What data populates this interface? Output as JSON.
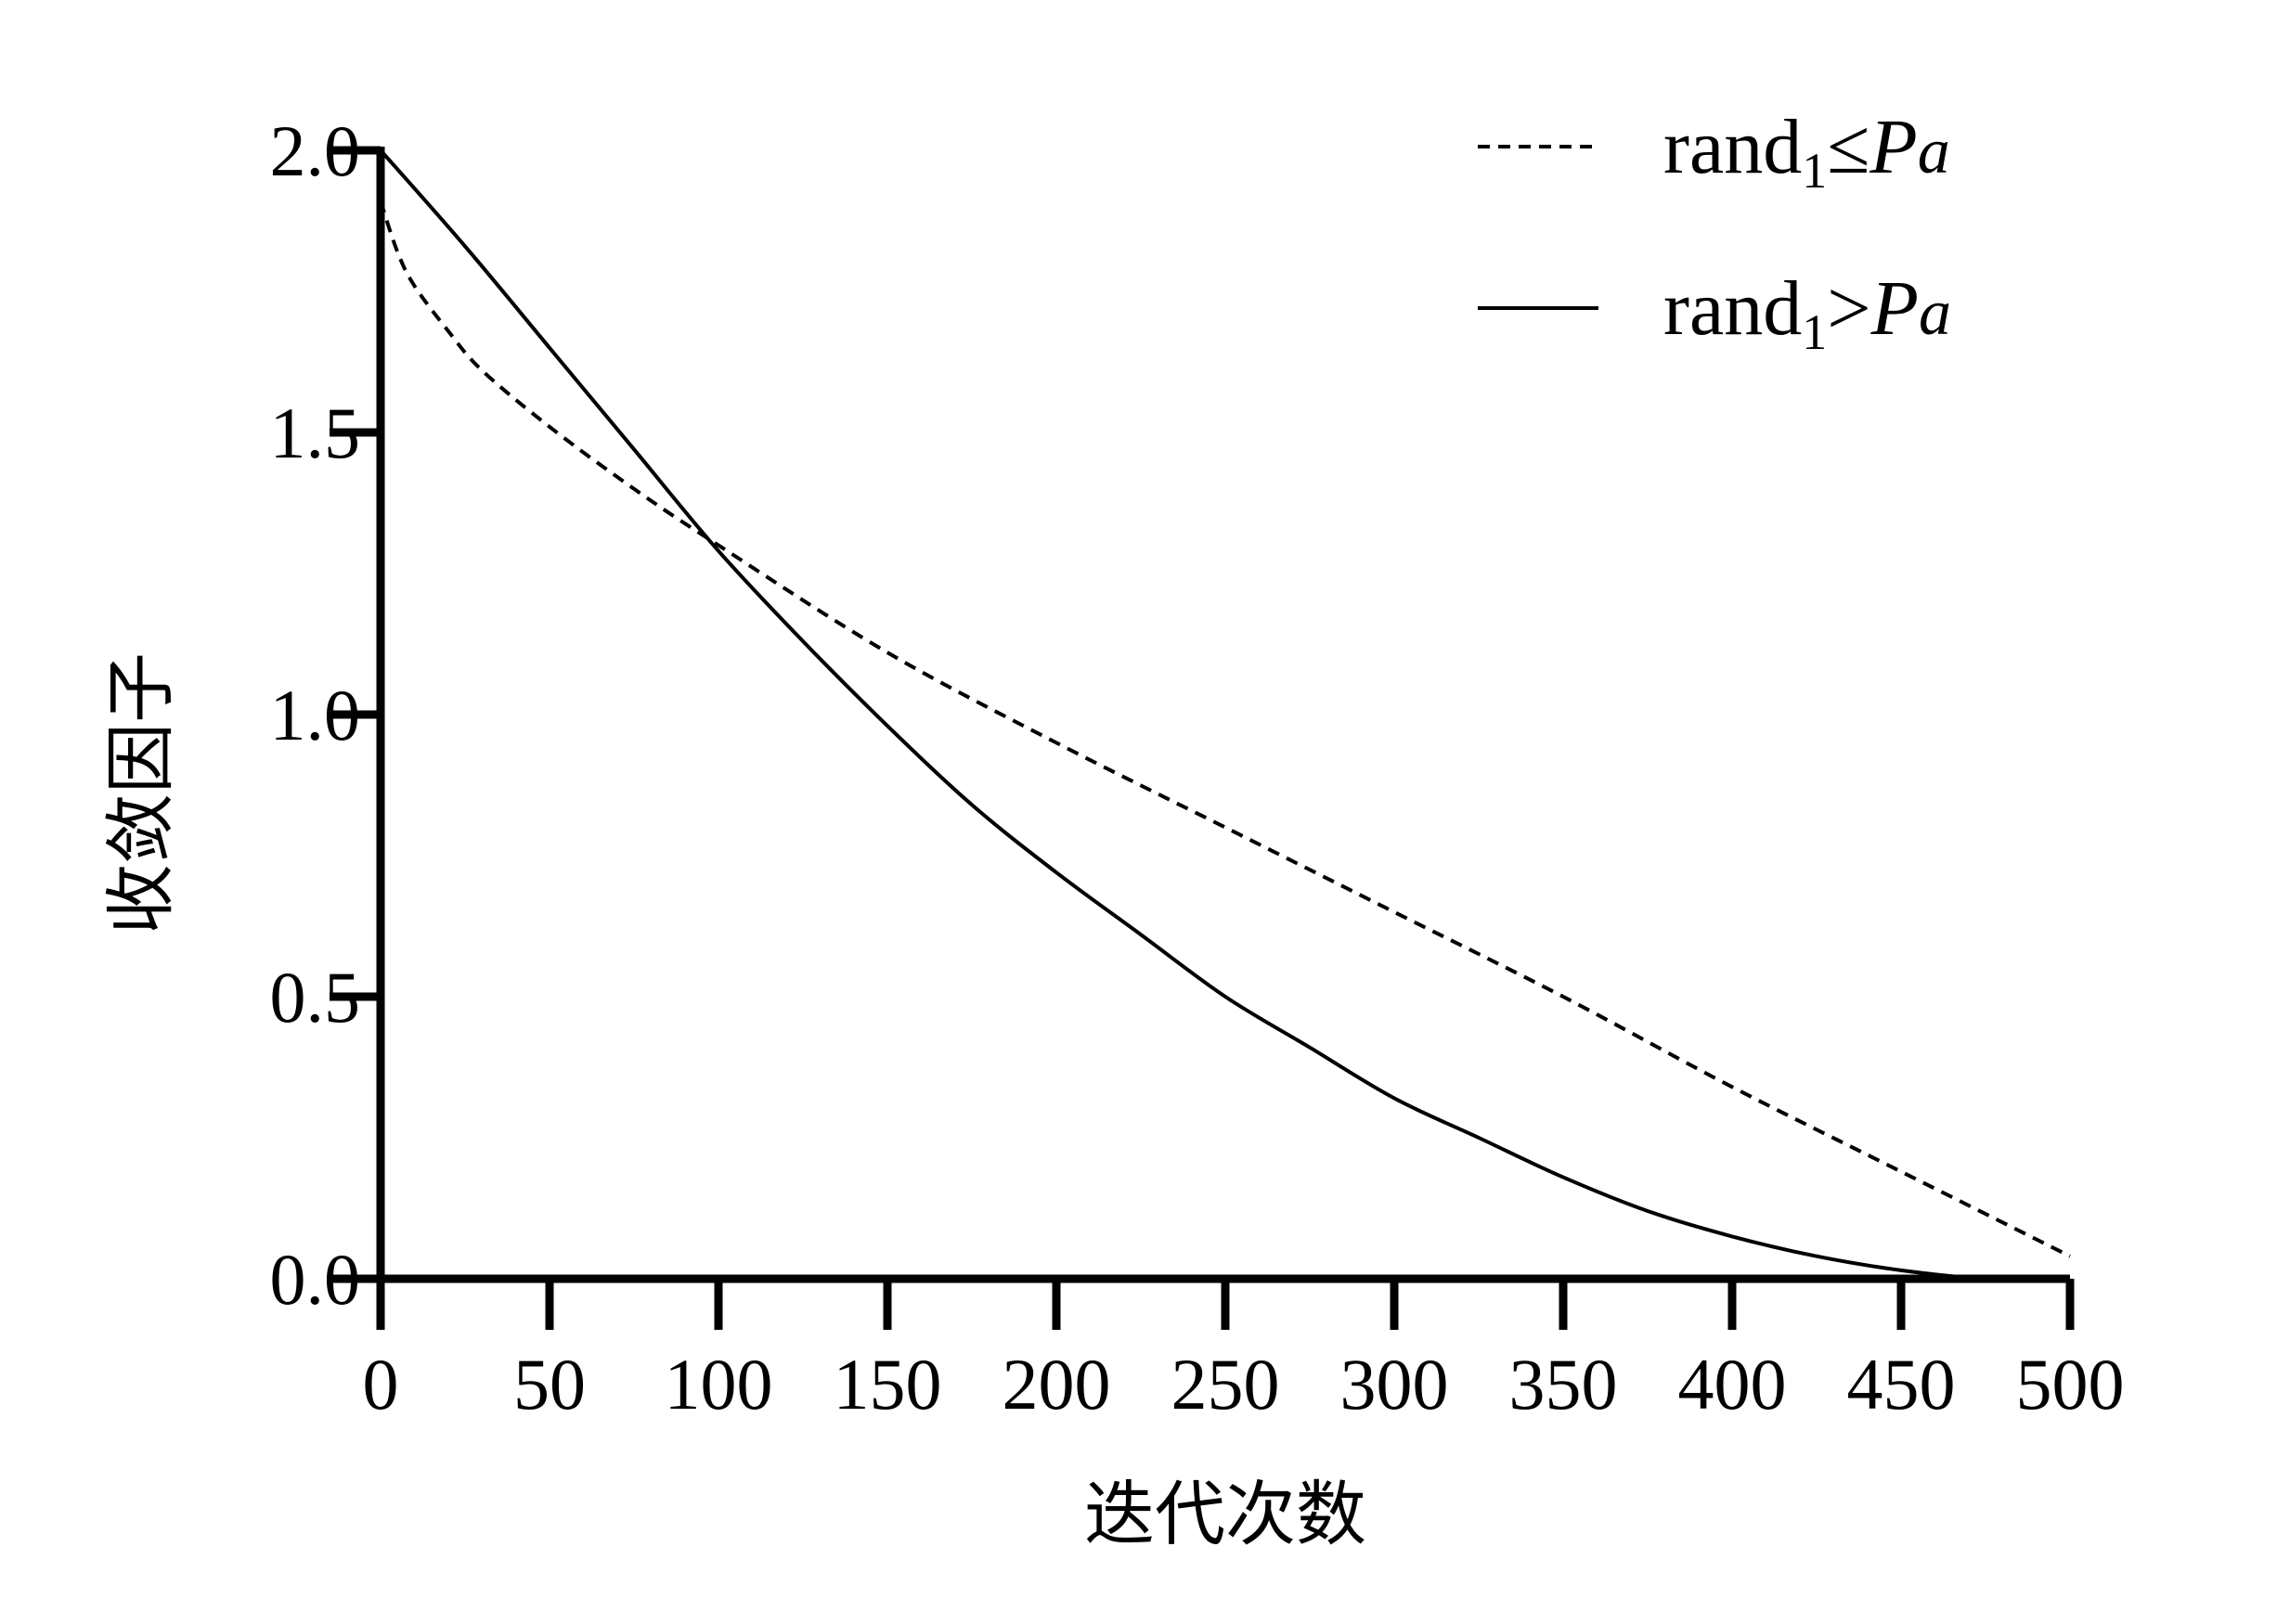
{
  "chart_data": {
    "type": "line",
    "xlabel": "迭代次数",
    "ylabel": "收敛因子",
    "xlim": [
      0,
      500
    ],
    "ylim": [
      0,
      2
    ],
    "x_ticks": [
      0,
      50,
      100,
      150,
      200,
      250,
      300,
      350,
      400,
      450,
      500
    ],
    "y_ticks": [
      "0.0",
      "0.5",
      "1.0",
      "1.5",
      "2.0"
    ],
    "grid": false,
    "legend_position": "top-right",
    "series": [
      {
        "name": "rand1≤Pa",
        "legend": {
          "base": "rand",
          "sub": "1",
          "op": "≤",
          "var": "P",
          "var_sub": "a"
        },
        "style": "dashed",
        "color": "#000000",
        "x": [
          0,
          5,
          10,
          20,
          30,
          50,
          75,
          100,
          150,
          200,
          250,
          300,
          350,
          400,
          450,
          500
        ],
        "y": [
          1.91,
          1.82,
          1.76,
          1.68,
          1.61,
          1.51,
          1.4,
          1.3,
          1.11,
          0.95,
          0.8,
          0.65,
          0.5,
          0.34,
          0.19,
          0.04
        ]
      },
      {
        "name": "rand1>Pa",
        "legend": {
          "base": "rand",
          "sub": "1",
          "op": ">",
          "var": "P",
          "var_sub": "a"
        },
        "style": "solid",
        "color": "#000000",
        "x": [
          0,
          25,
          50,
          75,
          100,
          125,
          150,
          175,
          200,
          225,
          250,
          275,
          300,
          325,
          350,
          375,
          400,
          425,
          450,
          475,
          500
        ],
        "y": [
          2.0,
          1.83,
          1.65,
          1.47,
          1.29,
          1.13,
          0.98,
          0.84,
          0.72,
          0.61,
          0.5,
          0.41,
          0.32,
          0.25,
          0.18,
          0.12,
          0.075,
          0.04,
          0.015,
          0.0,
          0.0
        ]
      }
    ]
  }
}
